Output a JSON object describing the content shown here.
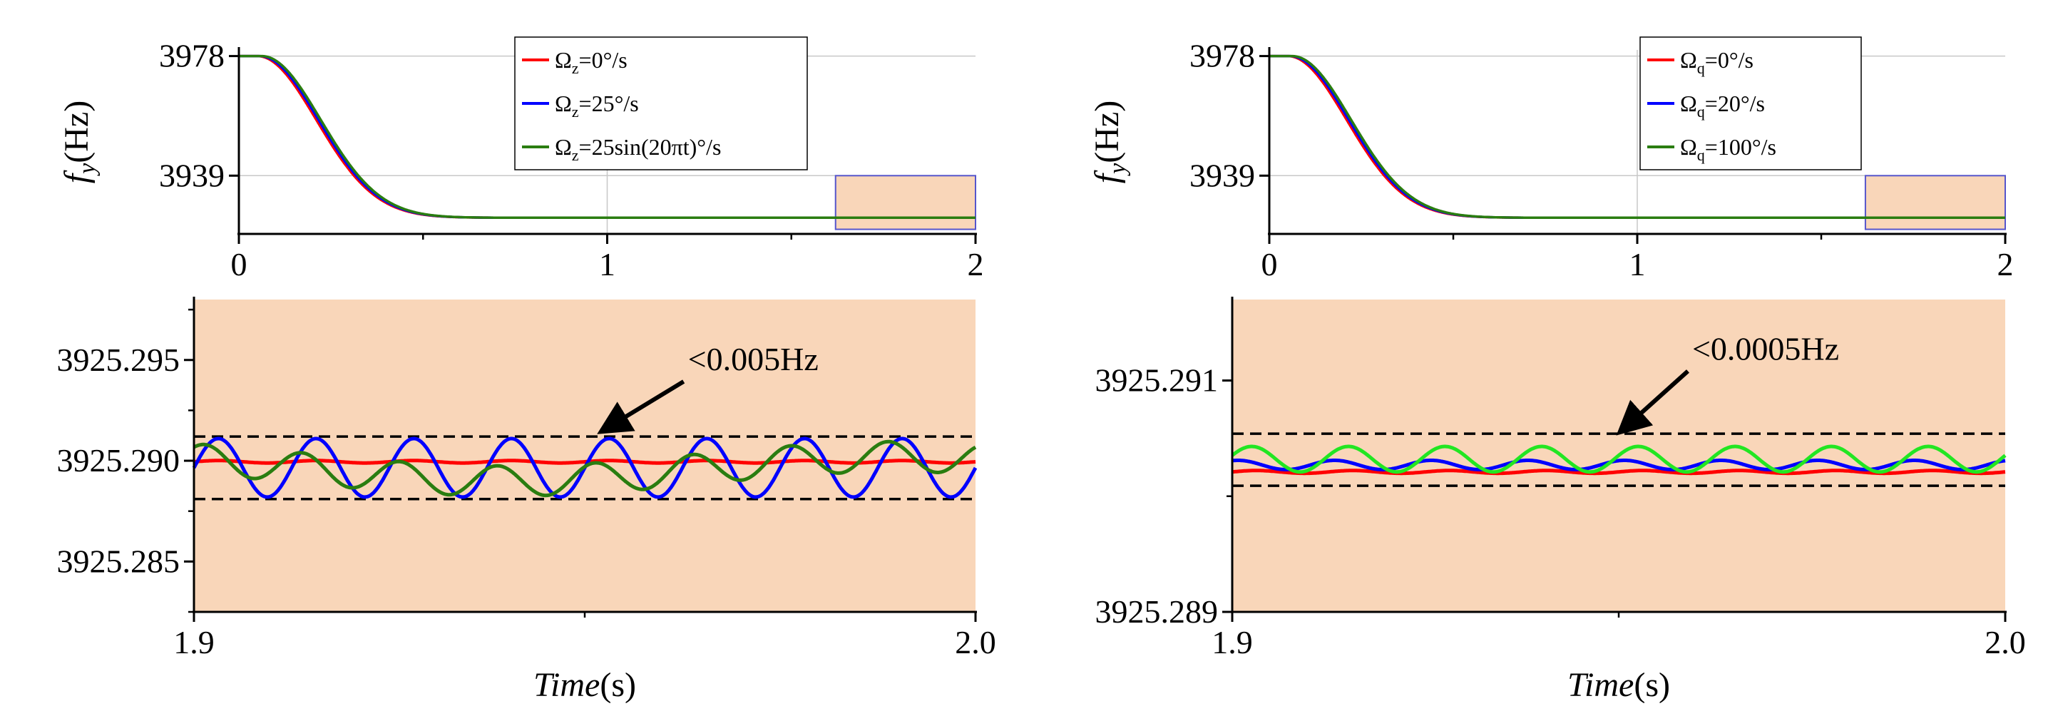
{
  "chart_data": [
    {
      "id": "top-left",
      "type": "line",
      "ylabel_pre": "f",
      "ylabel_sub": "y",
      "ylabel_post": "(Hz)",
      "xlim": [
        0,
        2
      ],
      "ylim": [
        3920,
        3980
      ],
      "xticks": [
        "0",
        "1",
        "2"
      ],
      "yticks": [
        "3978",
        "3939"
      ],
      "ytick_values": [
        3978,
        3939
      ],
      "grid": true,
      "start": 3978,
      "end": 3925.29,
      "decay_start": 0.05,
      "tau": 0.16,
      "legend_position": "top-center",
      "series": [
        {
          "sym": "Ω",
          "sub": "z",
          "text": "=0°/s",
          "color": "#ff0000"
        },
        {
          "sym": "Ω",
          "sub": "z",
          "text": "=25°/s",
          "color": "#0000ff"
        },
        {
          "sym": "Ω",
          "sub": "z",
          "text": "=25sin(20πt)°/s",
          "color": "#2a7d10"
        }
      ],
      "zoom_box": {
        "x": [
          1.62,
          2.0
        ],
        "y": [
          3921.5,
          3939.0
        ],
        "fill": "#f9d6b9",
        "stroke": "#5555cc"
      }
    },
    {
      "id": "top-right",
      "type": "line",
      "ylabel_pre": "f",
      "ylabel_sub": "y",
      "ylabel_post": "(Hz)",
      "xlim": [
        0,
        2
      ],
      "ylim": [
        3920,
        3980
      ],
      "xticks": [
        "0",
        "1",
        "2"
      ],
      "yticks": [
        "3978",
        "3939"
      ],
      "ytick_values": [
        3978,
        3939
      ],
      "grid": true,
      "start": 3978,
      "end": 3925.29,
      "decay_start": 0.05,
      "tau": 0.16,
      "legend_position": "top-right",
      "series": [
        {
          "sym": "Ω",
          "sub": "q",
          "text": "=0°/s",
          "color": "#ff0000"
        },
        {
          "sym": "Ω",
          "sub": "q",
          "text": "=20°/s",
          "color": "#0000ff"
        },
        {
          "sym": "Ω",
          "sub": "q",
          "text": "=100°/s",
          "color": "#2a7d10"
        }
      ],
      "zoom_box": {
        "x": [
          1.62,
          2.0
        ],
        "y": [
          3921.5,
          3939.0
        ],
        "fill": "#f9d6b9",
        "stroke": "#5555cc"
      }
    },
    {
      "id": "bottom-left",
      "type": "line",
      "xlabel_italic": "Time",
      "xlabel_post": "(s)",
      "xlim": [
        1.9,
        2.0
      ],
      "ylim": [
        3925.2825,
        3925.298
      ],
      "xticks": [
        "1.9",
        "2.0"
      ],
      "yticks": [
        "3925.295",
        "3925.290",
        "3925.285"
      ],
      "ytick_values": [
        3925.295,
        3925.29,
        3925.285
      ],
      "background": "#f9d6b9",
      "dashed_lines": [
        3925.2912,
        3925.2881
      ],
      "annotation": {
        "text": "<0.005Hz",
        "x": 1.9632,
        "y": 3925.2945,
        "arrow_to": [
          1.9525,
          3925.2914
        ]
      },
      "series": [
        {
          "name": "red",
          "color": "#ff0000",
          "center": 3925.28995,
          "amp": 6e-05,
          "freq": 80,
          "phase": 0
        },
        {
          "name": "blue",
          "color": "#0000ff",
          "center": 3925.28965,
          "amp": 0.00145,
          "freq": 80,
          "phase": 0
        },
        {
          "name": "green",
          "color": "#2a7d10",
          "center": 3925.2896,
          "amp": 0.00075,
          "freq": 80,
          "phase": 0.9,
          "beat": 0.0006,
          "beat_freq": 10
        }
      ]
    },
    {
      "id": "bottom-right",
      "type": "line",
      "xlabel_italic": "Time",
      "xlabel_post": "(s)",
      "xlim": [
        1.9,
        2.0
      ],
      "ylim": [
        3925.289,
        3925.2917
      ],
      "xticks": [
        "1.9",
        "2.0"
      ],
      "yticks": [
        "3925.291",
        "3925.289"
      ],
      "ytick_values": [
        3925.291,
        3925.289
      ],
      "background": "#f9d6b9",
      "dashed_lines": [
        3925.29054,
        3925.29009
      ],
      "annotation": {
        "text": "<0.0005Hz",
        "x": 1.9595,
        "y": 3925.29118,
        "arrow_to": [
          1.9505,
          3925.29055
        ]
      },
      "series": [
        {
          "name": "red",
          "color": "#ff0000",
          "center": 3925.29021,
          "amp": 1.2e-05,
          "freq": 80,
          "phase": 0
        },
        {
          "name": "blue",
          "color": "#0000ff",
          "center": 3925.29027,
          "amp": 4e-05,
          "freq": 80,
          "phase": 1.2
        },
        {
          "name": "green",
          "color": "#22e622",
          "center": 3925.29032,
          "amp": 0.00011,
          "freq": 80,
          "phase": 0.3
        }
      ]
    }
  ]
}
